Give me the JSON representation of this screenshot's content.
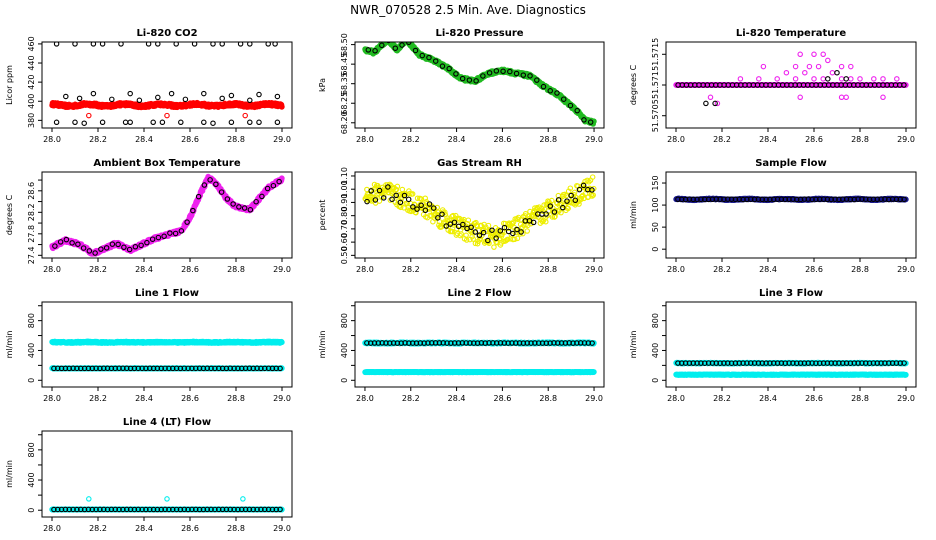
{
  "figure": {
    "title": "NWR_070528  2.5 Min. Ave. Diagnostics"
  },
  "colors": {
    "black": "#000000",
    "red": "#ff0000",
    "green": "#22bb22",
    "magenta": "#ee22ee",
    "yellow": "#eeee00",
    "navy": "#1a1a90",
    "cyan": "#00eeee"
  },
  "chart_data": [
    {
      "id": "co2",
      "type": "scatter",
      "title": "Li-820 CO2",
      "ylabel": "Licor ppm",
      "xlim": [
        28.0,
        29.0
      ],
      "ylim": [
        372,
        462
      ],
      "yticks": [
        380,
        400,
        420,
        440,
        460
      ],
      "xticks": [
        28.0,
        28.2,
        28.4,
        28.6,
        28.8,
        29.0
      ],
      "series": [
        {
          "name": "fill",
          "color": "red",
          "style": "band",
          "fn": "flat",
          "params": {
            "base": 396,
            "amp": 1,
            "noise": 1.5
          }
        },
        {
          "name": "ref-high",
          "color": "black",
          "style": "open",
          "x": [
            28.02,
            28.1,
            28.18,
            28.22,
            28.3,
            28.42,
            28.46,
            28.54,
            28.62,
            28.7,
            28.74,
            28.82,
            28.86,
            28.94,
            28.97
          ],
          "y": [
            460,
            460,
            460,
            460,
            460,
            460,
            460,
            460,
            460,
            460,
            460,
            460,
            460,
            460,
            460
          ]
        },
        {
          "name": "ref-mid",
          "color": "black",
          "style": "open",
          "x": [
            28.06,
            28.12,
            28.18,
            28.26,
            28.34,
            28.38,
            28.46,
            28.52,
            28.58,
            28.66,
            28.74,
            28.78,
            28.86,
            28.9,
            28.98
          ],
          "y": [
            405,
            403,
            408,
            402,
            408,
            401,
            404,
            408,
            402,
            408,
            403,
            406,
            401,
            407,
            405
          ]
        },
        {
          "name": "ref-low",
          "color": "black",
          "style": "open",
          "x": [
            28.02,
            28.1,
            28.14,
            28.22,
            28.32,
            28.34,
            28.44,
            28.48,
            28.56,
            28.66,
            28.7,
            28.78,
            28.86,
            28.9,
            28.98
          ],
          "y": [
            378,
            378,
            377,
            378,
            378,
            378,
            378,
            378,
            378,
            378,
            377,
            378,
            378,
            378,
            378
          ]
        },
        {
          "name": "cal",
          "color": "red",
          "style": "open",
          "x": [
            28.16,
            28.5,
            28.84
          ],
          "y": [
            385,
            385,
            385
          ]
        }
      ]
    },
    {
      "id": "pressure",
      "type": "scatter",
      "title": "Li-820 Pressure",
      "ylabel": "kPa",
      "xlim": [
        28.0,
        29.0
      ],
      "ylim": [
        68.18,
        68.51
      ],
      "yticks": [
        68.2,
        68.35,
        68.5
      ],
      "ytick_labels": [
        "68.20",
        "68.35",
        "68.50"
      ],
      "extra_ytick_labels": [
        {
          "v": 68.275,
          "t": "68.25"
        },
        {
          "v": 68.425,
          "t": "68.45"
        }
      ],
      "xticks": [
        28.0,
        28.2,
        28.4,
        28.6,
        28.8,
        29.0
      ],
      "series": [
        {
          "name": "fill",
          "color": "green",
          "style": "band",
          "fn": "pressure",
          "params": {
            "noise": 0.006
          }
        },
        {
          "name": "ref",
          "color": "black",
          "style": "open",
          "fn": "pressure",
          "params": {
            "n": 34,
            "noise": 0.004
          }
        }
      ]
    },
    {
      "id": "temp",
      "type": "scatter",
      "title": "Li-820 Temperature",
      "ylabel": "degrees C",
      "xlim": [
        28.0,
        29.0
      ],
      "ylim": [
        51.5703,
        51.5717
      ],
      "yticks": [
        51.5705,
        51.571,
        51.5715
      ],
      "ytick_labels": [
        "51.5705",
        "51.571",
        "51.5715"
      ],
      "xticks": [
        28.0,
        28.2,
        28.4,
        28.6,
        28.8,
        29.0
      ],
      "series": [
        {
          "name": "fill",
          "color": "magenta",
          "style": "band",
          "fn": "flat",
          "params": {
            "base": 51.571,
            "amp": 0,
            "noise": 0
          }
        },
        {
          "name": "ref",
          "color": "black",
          "style": "open",
          "fn": "flat",
          "params": {
            "base": 51.571,
            "amp": 0,
            "noise": 0,
            "n": 55
          }
        },
        {
          "name": "hi1",
          "color": "magenta",
          "style": "open",
          "x": [
            28.28,
            28.36,
            28.44,
            28.48,
            28.52,
            28.56,
            28.6,
            28.64,
            28.68,
            28.72,
            28.76,
            28.8,
            28.86,
            28.9,
            28.96
          ],
          "y": [
            51.5711,
            51.5711,
            51.5711,
            51.5712,
            51.5711,
            51.5712,
            51.5711,
            51.5711,
            51.5712,
            51.5711,
            51.5711,
            51.5711,
            51.5711,
            51.5711,
            51.5711
          ]
        },
        {
          "name": "hi2",
          "color": "magenta",
          "style": "open",
          "x": [
            28.38,
            28.52,
            28.58,
            28.62,
            28.66,
            28.72,
            28.76
          ],
          "y": [
            51.5713,
            51.5713,
            51.5713,
            51.5713,
            51.5714,
            51.5713,
            51.5713
          ]
        },
        {
          "name": "hi3",
          "color": "magenta",
          "style": "open",
          "x": [
            28.54,
            28.6,
            28.64
          ],
          "y": [
            51.5715,
            51.5715,
            51.5715
          ]
        },
        {
          "name": "lo",
          "color": "magenta",
          "style": "open",
          "x": [
            28.15,
            28.18,
            28.54,
            28.72,
            28.74,
            28.9
          ],
          "y": [
            51.5708,
            51.5707,
            51.5708,
            51.5708,
            51.5708,
            51.5708
          ]
        },
        {
          "name": "lo-ref",
          "color": "black",
          "style": "open",
          "x": [
            28.13,
            28.17,
            28.66,
            28.7,
            28.74
          ],
          "y": [
            51.5707,
            51.5707,
            51.5711,
            51.5712,
            51.5711
          ]
        }
      ]
    },
    {
      "id": "boxtemp",
      "type": "scatter",
      "title": "Ambient Box Temperature",
      "ylabel": "degrees C",
      "xlim": [
        28.0,
        29.0
      ],
      "ylim": [
        27.35,
        28.95
      ],
      "yticks": [
        27.4,
        27.6,
        27.8,
        28,
        28.2,
        28.4,
        28.6,
        28.8
      ],
      "ytick_labels": [
        "27.4",
        "",
        "27.8",
        "",
        "28.2",
        "",
        "28.6",
        ""
      ],
      "xticks": [
        28.0,
        28.2,
        28.4,
        28.6,
        28.8,
        29.0
      ],
      "series": [
        {
          "name": "fill",
          "color": "magenta",
          "style": "band",
          "fn": "boxtemp",
          "params": {
            "noise": 0.03
          }
        },
        {
          "name": "ref",
          "color": "black",
          "style": "open",
          "fn": "boxtemp",
          "params": {
            "n": 40,
            "noise": 0.02
          }
        }
      ]
    },
    {
      "id": "rh",
      "type": "scatter",
      "title": "Gas Stream RH",
      "ylabel": "percent",
      "xlim": [
        28.0,
        29.0
      ],
      "ylim": [
        0.48,
        1.13
      ],
      "yticks": [
        0.5,
        0.6,
        0.7,
        0.8,
        0.9,
        1.0,
        1.1
      ],
      "ytick_labels": [
        "0.50",
        "0.60",
        "0.70",
        "0.80",
        "0.90",
        "1.00",
        "1.10"
      ],
      "xticks": [
        28.0,
        28.2,
        28.4,
        28.6,
        28.8,
        29.0
      ],
      "series": [
        {
          "name": "fill",
          "color": "yellow",
          "style": "open-dense",
          "fn": "rh",
          "params": {
            "noise": 0.08,
            "n": 420
          }
        },
        {
          "name": "ref",
          "color": "black",
          "style": "open",
          "fn": "rh",
          "params": {
            "n": 55,
            "noise": 0.05
          }
        }
      ]
    },
    {
      "id": "sampleflow",
      "type": "scatter",
      "title": "Sample Flow",
      "ylabel": "ml/min",
      "xlim": [
        28.0,
        29.0
      ],
      "ylim": [
        -20,
        175
      ],
      "yticks": [
        0,
        50,
        100,
        150
      ],
      "xticks": [
        28.0,
        28.2,
        28.4,
        28.6,
        28.8,
        29.0
      ],
      "series": [
        {
          "name": "fill",
          "color": "navy",
          "style": "band",
          "fn": "flat",
          "params": {
            "base": 113,
            "amp": 1,
            "noise": 1
          }
        },
        {
          "name": "ref",
          "color": "black",
          "style": "open",
          "fn": "flat",
          "params": {
            "base": 113,
            "amp": 0,
            "noise": 0.5,
            "n": 60
          }
        }
      ]
    },
    {
      "id": "line1",
      "type": "scatter",
      "title": "Line 1 Flow",
      "ylabel": "ml/min",
      "xlim": [
        28.0,
        29.0
      ],
      "ylim": [
        -90,
        1050
      ],
      "yticks": [
        0,
        200,
        400,
        600,
        800,
        1000
      ],
      "ytick_labels": [
        "0",
        "",
        "400",
        "",
        "800",
        ""
      ],
      "xticks": [
        28.0,
        28.2,
        28.4,
        28.6,
        28.8,
        29.0
      ],
      "series": [
        {
          "name": "upper",
          "color": "cyan",
          "style": "band",
          "fn": "flat",
          "params": {
            "base": 510,
            "amp": 2,
            "noise": 8
          }
        },
        {
          "name": "lower",
          "color": "cyan",
          "style": "band",
          "fn": "flat",
          "params": {
            "base": 160,
            "amp": 0,
            "noise": 3
          }
        },
        {
          "name": "ref",
          "color": "black",
          "style": "open",
          "fn": "flat",
          "params": {
            "base": 160,
            "amp": 0,
            "noise": 1,
            "n": 60
          }
        }
      ]
    },
    {
      "id": "line2",
      "type": "scatter",
      "title": "Line 2 Flow",
      "ylabel": "ml/min",
      "xlim": [
        28.0,
        29.0
      ],
      "ylim": [
        -90,
        1050
      ],
      "yticks": [
        0,
        200,
        400,
        600,
        800,
        1000
      ],
      "ytick_labels": [
        "0",
        "",
        "400",
        "",
        "800",
        ""
      ],
      "xticks": [
        28.0,
        28.2,
        28.4,
        28.6,
        28.8,
        29.0
      ],
      "series": [
        {
          "name": "upper",
          "color": "cyan",
          "style": "band",
          "fn": "flat",
          "params": {
            "base": 500,
            "amp": 2,
            "noise": 8
          }
        },
        {
          "name": "lower",
          "color": "cyan",
          "style": "band",
          "fn": "flat",
          "params": {
            "base": 110,
            "amp": 0,
            "noise": 3
          }
        },
        {
          "name": "ref",
          "color": "black",
          "style": "open",
          "fn": "flat",
          "params": {
            "base": 500,
            "amp": 0,
            "noise": 2,
            "n": 60
          }
        }
      ]
    },
    {
      "id": "line3",
      "type": "scatter",
      "title": "Line 3 Flow",
      "ylabel": "ml/min",
      "xlim": [
        28.0,
        29.0
      ],
      "ylim": [
        -90,
        1050
      ],
      "yticks": [
        0,
        200,
        400,
        600,
        800,
        1000
      ],
      "ytick_labels": [
        "0",
        "",
        "400",
        "",
        "800",
        ""
      ],
      "xticks": [
        28.0,
        28.2,
        28.4,
        28.6,
        28.8,
        29.0
      ],
      "series": [
        {
          "name": "upper",
          "color": "cyan",
          "style": "band",
          "fn": "flat",
          "params": {
            "base": 230,
            "amp": 1,
            "noise": 5
          }
        },
        {
          "name": "lower",
          "color": "cyan",
          "style": "band",
          "fn": "flat",
          "params": {
            "base": 75,
            "amp": 0,
            "noise": 3
          }
        },
        {
          "name": "ref",
          "color": "black",
          "style": "open",
          "fn": "flat",
          "params": {
            "base": 230,
            "amp": 0,
            "noise": 1,
            "n": 60
          }
        }
      ]
    },
    {
      "id": "line4",
      "type": "scatter",
      "title": "Line 4 (LT) Flow",
      "ylabel": "ml/min",
      "xlim": [
        28.0,
        29.0
      ],
      "ylim": [
        -90,
        1050
      ],
      "yticks": [
        0,
        200,
        400,
        600,
        800,
        1000
      ],
      "ytick_labels": [
        "0",
        "",
        "400",
        "",
        "800",
        ""
      ],
      "xticks": [
        28.0,
        28.2,
        28.4,
        28.6,
        28.8,
        29.0
      ],
      "series": [
        {
          "name": "fill",
          "color": "cyan",
          "style": "band",
          "fn": "flat",
          "params": {
            "base": 10,
            "amp": 0,
            "noise": 2
          }
        },
        {
          "name": "ref",
          "color": "black",
          "style": "open",
          "fn": "flat",
          "params": {
            "base": 10,
            "amp": 0,
            "noise": 1,
            "n": 60
          }
        },
        {
          "name": "spikes",
          "color": "cyan",
          "style": "open",
          "x": [
            28.16,
            28.5,
            28.83
          ],
          "y": [
            150,
            150,
            150
          ]
        }
      ]
    }
  ]
}
